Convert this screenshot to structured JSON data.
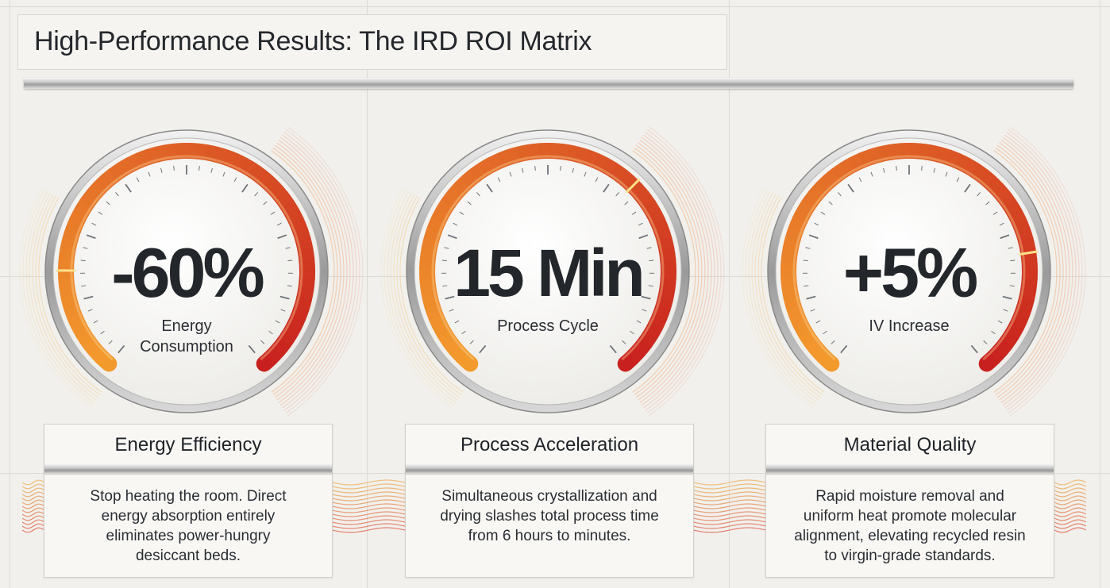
{
  "page": {
    "title": "High-Performance Results: The IRD ROI Matrix"
  },
  "gauges": [
    {
      "value": "-60%",
      "label_line1": "Energy",
      "label_line2": "Consumption",
      "fill_fraction": 0.18,
      "card_title": "Energy Efficiency",
      "card_text": [
        "Stop heating the room. Direct",
        "energy absorption entirely",
        "eliminates power-hungry",
        "desiccant beds."
      ]
    },
    {
      "value": "15 Min",
      "label_line1": "Process Cycle",
      "label_line2": "",
      "fill_fraction": 0.66,
      "card_title": "Process Acceleration",
      "card_text": [
        "Simultaneous crystallization and",
        "drying slashes total process time",
        "from 6 hours to minutes."
      ]
    },
    {
      "value": "+5%",
      "label_line1": "IV Increase",
      "label_line2": "",
      "fill_fraction": 0.79,
      "card_title": "Material Quality",
      "card_text": [
        "Rapid moisture removal and",
        "uniform heat promote molecular",
        "alignment, elevating recycled resin",
        "to virgin-grade standards."
      ]
    }
  ],
  "colors": {
    "arc_start": "#f39a2d",
    "arc_end": "#c8201e",
    "remaining_track": "#cfcecb",
    "marker": "#ffe08a",
    "text": "#23272b"
  }
}
